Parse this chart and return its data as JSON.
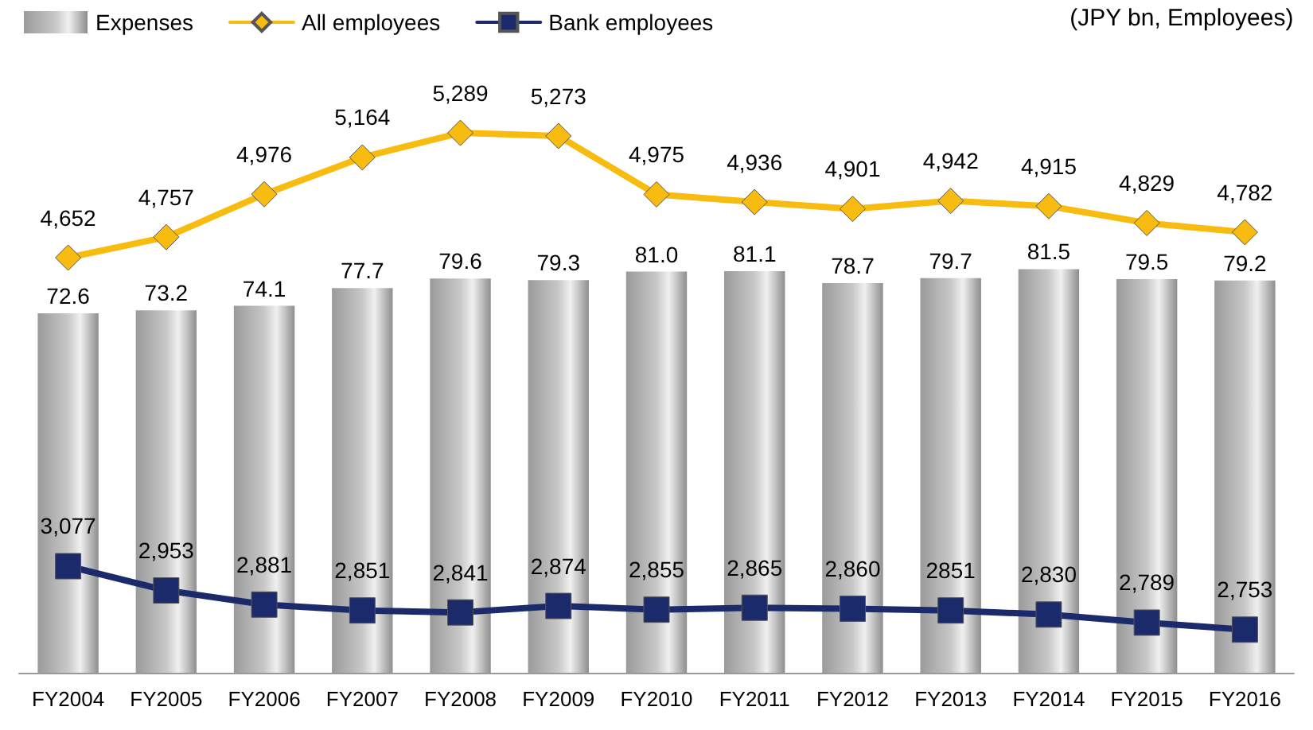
{
  "chart_data": {
    "type": "bar",
    "categories": [
      "FY2004",
      "FY2005",
      "FY2006",
      "FY2007",
      "FY2008",
      "FY2009",
      "FY2010",
      "FY2011",
      "FY2012",
      "FY2013",
      "FY2014",
      "FY2015",
      "FY2016"
    ],
    "series": [
      {
        "name": "Expenses",
        "color": "#c8c8c8",
        "values": [
          72.6,
          73.2,
          74.1,
          77.7,
          79.6,
          79.3,
          81.0,
          81.1,
          78.7,
          79.7,
          81.5,
          79.5,
          79.2
        ],
        "value_labels": [
          "72.6",
          "73.2",
          "74.1",
          "77.7",
          "79.6",
          "79.3",
          "81.0",
          "81.1",
          "78.7",
          "79.7",
          "81.5",
          "79.5",
          "79.2"
        ]
      },
      {
        "name": "All employees",
        "type": "line",
        "axis": "y2",
        "marker": "diamond",
        "color": "#f7bc0f",
        "values": [
          4652,
          4757,
          4976,
          5164,
          5289,
          5273,
          4975,
          4936,
          4901,
          4942,
          4915,
          4829,
          4782
        ],
        "value_labels": [
          "4,652",
          "4,757",
          "4,976",
          "5,164",
          "5,289",
          "5,273",
          "4,975",
          "4,936",
          "4,901",
          "4,942",
          "4,915",
          "4,829",
          "4,782"
        ]
      },
      {
        "name": "Bank employees",
        "type": "line",
        "axis": "y2",
        "marker": "square",
        "color": "#1b2a6b",
        "values": [
          3077,
          2953,
          2881,
          2851,
          2841,
          2874,
          2855,
          2865,
          2860,
          2851,
          2830,
          2789,
          2753
        ],
        "value_labels": [
          "3,077",
          "2,953",
          "2,881",
          "2,851",
          "2,841",
          "2,874",
          "2,855",
          "2,865",
          "2,860",
          "2851",
          "2,830",
          "2,789",
          "2,753"
        ]
      }
    ],
    "annotations": [
      "(JPY bn, Employees)"
    ],
    "ylim": [
      0,
      132
    ],
    "y2lim": [
      2533,
      5870
    ],
    "tick_labels": false,
    "legend": "top left",
    "grid": false
  }
}
